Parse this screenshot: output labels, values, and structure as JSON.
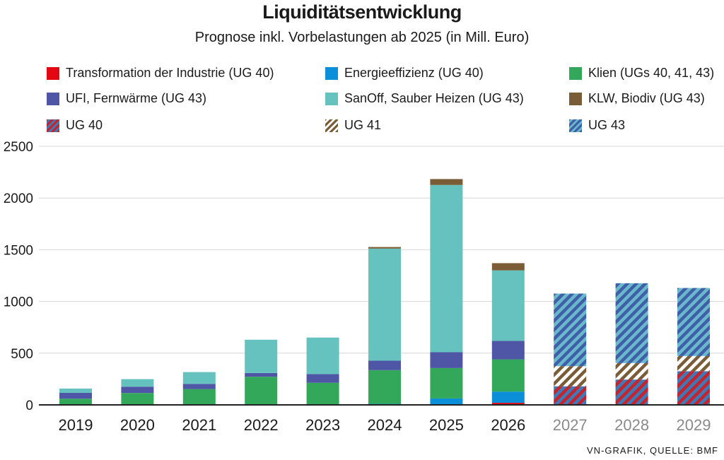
{
  "chart_data": {
    "type": "bar",
    "stacked": true,
    "title": "Liquiditätsentwicklung",
    "subtitle": "Prognose inkl. Vorbelastungen ab 2025 (in Mill. Euro)",
    "source": "VN-GRAFIK, QUELLE: BMF",
    "xlabel": "",
    "ylabel": "",
    "ylim": [
      0,
      2500
    ],
    "yticks": [
      0,
      500,
      1000,
      1500,
      2000,
      2500
    ],
    "grid": true,
    "legend_position": "top",
    "categories": [
      "2019",
      "2020",
      "2021",
      "2022",
      "2023",
      "2024",
      "2025",
      "2026",
      "2027",
      "2028",
      "2029"
    ],
    "forecast_categories": [
      "2027",
      "2028",
      "2029"
    ],
    "series": [
      {
        "name": "Transformation der Industrie (UG 40)",
        "color": "#e30613",
        "pattern": "solid",
        "values": [
          0,
          0,
          0,
          0,
          0,
          0,
          0,
          20,
          0,
          0,
          0
        ]
      },
      {
        "name": "Energieeffizienz (UG 40)",
        "color": "#0a8fd8",
        "pattern": "solid",
        "values": [
          0,
          0,
          0,
          0,
          0,
          10,
          62,
          108,
          0,
          0,
          0
        ]
      },
      {
        "name": "Klien (UGs 40, 41, 43)",
        "color": "#33a85a",
        "pattern": "solid",
        "values": [
          60,
          115,
          153,
          272,
          214,
          326,
          294,
          312,
          0,
          0,
          0
        ]
      },
      {
        "name": "UFI, Fernwärme (UG 43)",
        "color": "#4f56a6",
        "pattern": "solid",
        "values": [
          56,
          61,
          50,
          36,
          83,
          91,
          153,
          178,
          0,
          0,
          0
        ]
      },
      {
        "name": "SanOff, Sauber Heizen (UG 43)",
        "color": "#66c2bf",
        "pattern": "solid",
        "values": [
          42,
          73,
          114,
          322,
          354,
          1084,
          1617,
          682,
          0,
          0,
          0
        ]
      },
      {
        "name": "KLW, Biodiv (UG 43)",
        "color": "#7a5c37",
        "pattern": "solid",
        "values": [
          0,
          0,
          0,
          0,
          0,
          15,
          57,
          70,
          0,
          0,
          0
        ]
      },
      {
        "name": "UG 40",
        "color": "#c4242e",
        "color2": "#3f7ab8",
        "pattern": "hatch",
        "values": [
          0,
          0,
          0,
          0,
          0,
          0,
          0,
          0,
          180,
          245,
          326
        ]
      },
      {
        "name": "UG 41",
        "color": "#7a5c37",
        "color2": "#ffffff",
        "pattern": "hatch",
        "values": [
          0,
          0,
          0,
          0,
          0,
          0,
          0,
          0,
          194,
          159,
          146
        ]
      },
      {
        "name": "UG 43",
        "color": "#3f5fa8",
        "color2": "#6ab8cc",
        "pattern": "hatch",
        "values": [
          0,
          0,
          0,
          0,
          0,
          0,
          0,
          0,
          702,
          772,
          658
        ]
      }
    ]
  }
}
